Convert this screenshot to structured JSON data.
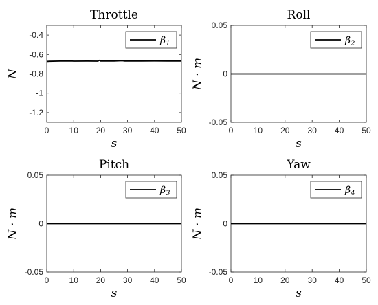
{
  "chart_data": [
    {
      "type": "line",
      "title": "Throttle",
      "xlabel": "s",
      "ylabel": "N",
      "xlim": [
        0,
        50
      ],
      "ylim": [
        -1.3,
        -0.3
      ],
      "xticks": [
        0,
        10,
        20,
        30,
        40,
        50
      ],
      "yticks": [
        -0.4,
        -0.6,
        -0.8,
        -1,
        -1.2
      ],
      "ytick_labels": [
        "-0.4",
        "-0.6",
        "-0.8",
        "-1",
        "-1.2"
      ],
      "legend": {
        "symbol": "β",
        "subscript": "1",
        "position": "top-right"
      },
      "series": [
        {
          "name": "β1",
          "x": [
            0,
            1,
            5,
            9,
            10,
            15,
            19,
            19.5,
            20,
            21,
            25,
            28,
            29,
            30,
            35,
            40,
            45,
            50
          ],
          "y": [
            -0.672,
            -0.67,
            -0.668,
            -0.667,
            -0.669,
            -0.668,
            -0.669,
            -0.66,
            -0.668,
            -0.667,
            -0.668,
            -0.664,
            -0.668,
            -0.667,
            -0.668,
            -0.667,
            -0.668,
            -0.668
          ]
        }
      ]
    },
    {
      "type": "line",
      "title": "Roll",
      "xlabel": "s",
      "ylabel": "N · m",
      "xlim": [
        0,
        50
      ],
      "ylim": [
        -0.05,
        0.05
      ],
      "xticks": [
        0,
        10,
        20,
        30,
        40,
        50
      ],
      "yticks": [
        0.05,
        0,
        -0.05
      ],
      "ytick_labels": [
        "0.05",
        "0",
        "-0.05"
      ],
      "legend": {
        "symbol": "β",
        "subscript": "2",
        "position": "top-right"
      },
      "series": [
        {
          "name": "β2",
          "x": [
            0,
            50
          ],
          "y": [
            0,
            0
          ]
        }
      ]
    },
    {
      "type": "line",
      "title": "Pitch",
      "xlabel": "s",
      "ylabel": "N · m",
      "xlim": [
        0,
        50
      ],
      "ylim": [
        -0.05,
        0.05
      ],
      "xticks": [
        0,
        10,
        20,
        30,
        40,
        50
      ],
      "yticks": [
        0.05,
        0,
        -0.05
      ],
      "ytick_labels": [
        "0.05",
        "0",
        "-0.05"
      ],
      "legend": {
        "symbol": "β",
        "subscript": "3",
        "position": "top-right"
      },
      "series": [
        {
          "name": "β3",
          "x": [
            0,
            50
          ],
          "y": [
            0,
            0
          ]
        }
      ]
    },
    {
      "type": "line",
      "title": "Yaw",
      "xlabel": "s",
      "ylabel": "N · m",
      "xlim": [
        0,
        50
      ],
      "ylim": [
        -0.05,
        0.05
      ],
      "xticks": [
        0,
        10,
        20,
        30,
        40,
        50
      ],
      "yticks": [
        0.05,
        0,
        -0.05
      ],
      "ytick_labels": [
        "0.05",
        "0",
        "-0.05"
      ],
      "legend": {
        "symbol": "β",
        "subscript": "4",
        "position": "top-right"
      },
      "series": [
        {
          "name": "β4",
          "x": [
            0,
            50
          ],
          "y": [
            0,
            0
          ]
        }
      ]
    }
  ],
  "colors": {
    "line": "#000000",
    "axis": "#262626"
  }
}
